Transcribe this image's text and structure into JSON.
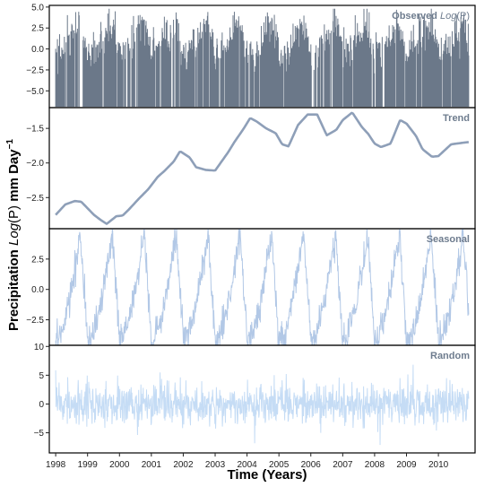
{
  "chart_data": {
    "type": "line",
    "xlabel": "Time (Years)",
    "ylabel": "Precipitation Log(P) mm Day",
    "ylabel_parts": {
      "prefix": "Precipitation ",
      "italic": "Log",
      "paren": "(P)",
      "suffix": " mm Day",
      "superscript": "−1"
    },
    "x_range": [
      1997.8,
      2011.15
    ],
    "x_ticks": [
      1998,
      1999,
      2000,
      2001,
      2002,
      2003,
      2004,
      2005,
      2006,
      2007,
      2008,
      2009,
      2010
    ],
    "panels": [
      {
        "id": "observed",
        "title": "Observed Log(P)",
        "title_parts": {
          "text": "Observed ",
          "italic": "Log",
          "paren": "(P)"
        },
        "color": "#6b7889",
        "ylim": [
          -7.0,
          5.2
        ],
        "y_ticks": [
          5.0,
          2.5,
          0.0,
          -2.5,
          -5.0
        ],
        "y_tick_labels": [
          "5.0",
          "2.5",
          "0.0",
          "−2.5",
          "−5.0"
        ],
        "floor": -6.9,
        "seasonal_range": [
          -4.5,
          4.5
        ]
      },
      {
        "id": "trend",
        "title": "Trend",
        "color": "#8e9fb8",
        "ylim": [
          -2.95,
          -1.2
        ],
        "y_ticks": [
          -1.5,
          -2.0,
          -2.5
        ],
        "y_tick_labels": [
          "−1.5",
          "−2.0",
          "−2.5"
        ],
        "trend_points": {
          "x": [
            1998.0,
            1998.3,
            1998.6,
            1998.8,
            1999.2,
            1999.4,
            1999.6,
            1999.9,
            2000.1,
            2000.3,
            2000.6,
            2000.9,
            2001.2,
            2001.4,
            2001.7,
            2001.9,
            2002.2,
            2002.4,
            2002.7,
            2003.0,
            2003.4,
            2003.6,
            2003.9,
            2004.1,
            2004.3,
            2004.6,
            2004.9,
            2005.1,
            2005.3,
            2005.6,
            2005.9,
            2006.2,
            2006.5,
            2006.8,
            2007.0,
            2007.3,
            2007.6,
            2007.8,
            2008.0,
            2008.2,
            2008.5,
            2008.8,
            2009.0,
            2009.3,
            2009.5,
            2009.8,
            2010.0,
            2010.4,
            2010.9
          ],
          "y": [
            -2.75,
            -2.6,
            -2.55,
            -2.56,
            -2.75,
            -2.82,
            -2.88,
            -2.77,
            -2.76,
            -2.67,
            -2.52,
            -2.38,
            -2.2,
            -2.12,
            -1.98,
            -1.83,
            -1.92,
            -2.06,
            -2.1,
            -2.11,
            -1.85,
            -1.7,
            -1.5,
            -1.35,
            -1.4,
            -1.5,
            -1.57,
            -1.73,
            -1.76,
            -1.45,
            -1.3,
            -1.3,
            -1.6,
            -1.52,
            -1.38,
            -1.27,
            -1.48,
            -1.58,
            -1.72,
            -1.77,
            -1.72,
            -1.38,
            -1.43,
            -1.61,
            -1.8,
            -1.91,
            -1.9,
            -1.73,
            -1.7
          ]
        }
      },
      {
        "id": "seasonal",
        "title": "Seasonal",
        "color": "#b2c8e6",
        "ylim": [
          -4.6,
          5.0
        ],
        "y_ticks": [
          2.5,
          0.0,
          -2.5
        ],
        "y_tick_labels": [
          "2.5",
          "0.0",
          "−2.5"
        ],
        "seasonal_range": [
          -4.3,
          4.6
        ]
      },
      {
        "id": "random",
        "title": "Random",
        "color": "#c5dcf5",
        "ylim": [
          -8.5,
          10.2
        ],
        "y_ticks": [
          10,
          5,
          0,
          -5
        ],
        "y_tick_labels": [
          "10",
          "5",
          "0",
          "−5"
        ],
        "noise_sd": 2.4
      }
    ]
  }
}
